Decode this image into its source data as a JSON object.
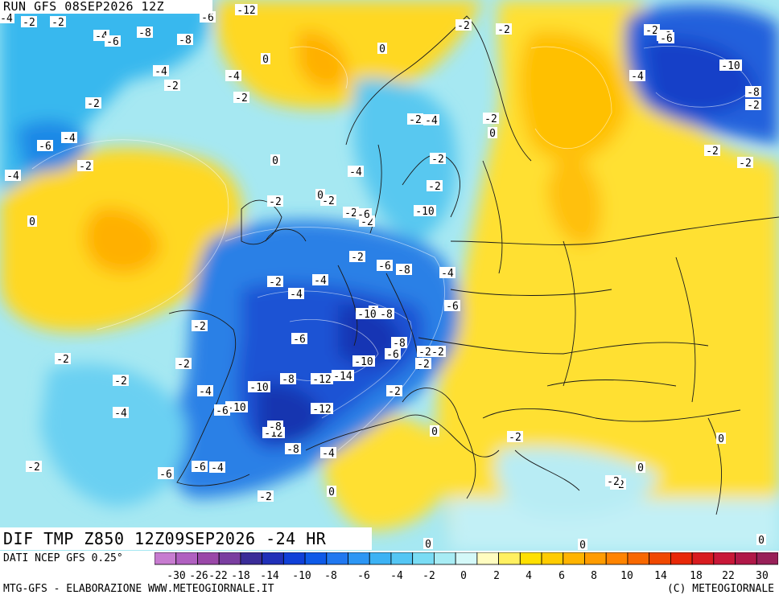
{
  "header": {
    "run_title": "RUN GFS 08SEP2026 12Z"
  },
  "map": {
    "main_title": "DIF TMP Z850 12Z09SEP2026 -24 HR",
    "background_colors": {
      "ocean_light": "#b4ecf0",
      "warm": "#ffe000",
      "cold_dark": "#0a46d8",
      "land_border": "#1a1a1a"
    },
    "contour_labels": [
      "-4",
      "-2",
      "-2",
      "-6",
      "-12",
      "-4",
      "-6",
      "-8",
      "-8",
      "0",
      "-2",
      "-2",
      "-6",
      "-10",
      "0",
      "-4",
      "-2",
      "-4",
      "-2",
      "-8",
      "-2",
      "0",
      "-4",
      "-2",
      "-2",
      "-2",
      "-4",
      "0",
      "-2",
      "-2",
      "-6",
      "-4",
      "-6",
      "0",
      "-2",
      "-4",
      "-2",
      "-2",
      "-2",
      "-2",
      "-2",
      "-2",
      "-2",
      "-2",
      "-4",
      "0",
      "-2",
      "-2",
      "-6",
      "-8",
      "-6",
      "-2",
      "-4",
      "-6",
      "0",
      "-10",
      "-4",
      "-6",
      "-8",
      "-2",
      "-2",
      "-2",
      "-10",
      "-6",
      "-4",
      "-2",
      "-4",
      "-10",
      "-8",
      "-12",
      "-14",
      "-2",
      "-6",
      "-8",
      "-12",
      "-4",
      "-12",
      "-10",
      "-8",
      "-4",
      "0",
      "0",
      "-2",
      "-6",
      "-6",
      "-4",
      "0",
      "0",
      "-2",
      "-2",
      "0",
      "-2",
      "0",
      "0",
      "-6",
      "-8",
      "-10",
      "-2",
      "-2"
    ]
  },
  "legend": {
    "source_note": "DATI NCEP GFS 0.25°",
    "tick_labels": [
      "-30",
      "-26",
      "-22",
      "-18",
      "-14",
      "-10",
      "-8",
      "-6",
      "-4",
      "-2",
      "0",
      "2",
      "4",
      "6",
      "8",
      "10",
      "14",
      "18",
      "22",
      "30"
    ],
    "colors": [
      "#c77cd0",
      "#b060c0",
      "#9a48a8",
      "#7a3ea0",
      "#3a2c98",
      "#2030b8",
      "#1040d8",
      "#0e5ae8",
      "#2078f0",
      "#2c96f4",
      "#3cb2f4",
      "#54c6f4",
      "#7adcf4",
      "#a8ecf4",
      "#d4f8f8",
      "#fffcc0",
      "#fff060",
      "#ffe000",
      "#ffcc00",
      "#ffb400",
      "#ff9c00",
      "#ff8400",
      "#f86800",
      "#f04800",
      "#e82808",
      "#d81c20",
      "#c81838",
      "#b01848",
      "#982058"
    ]
  },
  "footer": {
    "credit_left": "MTG-GFS - ELABORAZIONE WWW.METEOGIORNALE.IT",
    "credit_right": "(C) METEOGIORNALE"
  }
}
